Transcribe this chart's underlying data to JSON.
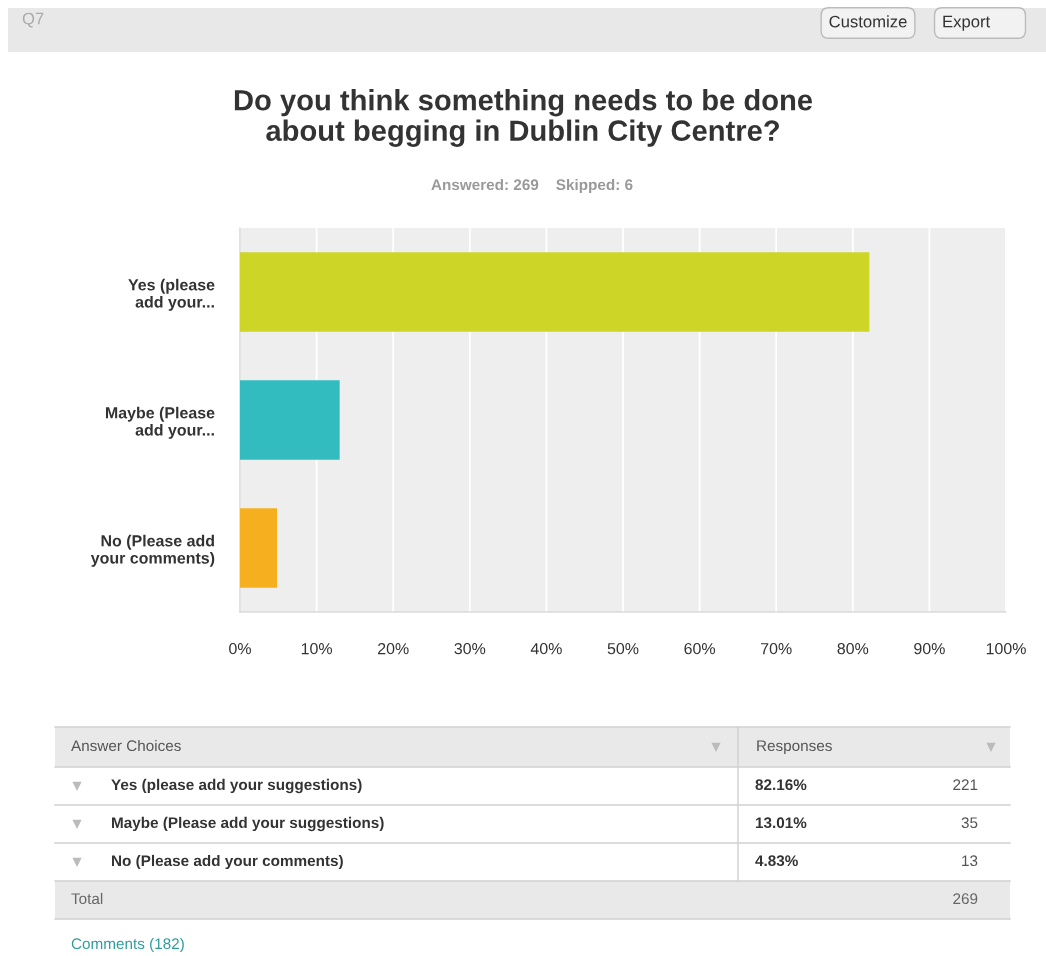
{
  "chart_data": {
    "type": "bar",
    "orientation": "horizontal",
    "title": "Do you think something needs to be done\nabout begging in Dublin City Centre?",
    "subtitle": "Answered: 269    Skipped: 6",
    "categories": [
      "Yes (please\nadd your...",
      "Maybe (Please\nadd your...",
      "No (Please add\nyour comments)"
    ],
    "values": [
      82.16,
      13.01,
      4.83
    ],
    "colors": [
      "#cdd527",
      "#32bcbf",
      "#f6b01f"
    ],
    "xlim": [
      0,
      100
    ],
    "xticks": [
      {
        "value": 0,
        "label": "0%"
      },
      {
        "value": 10,
        "label": "10%"
      },
      {
        "value": 20,
        "label": "20%"
      },
      {
        "value": 30,
        "label": "30%"
      },
      {
        "value": 40,
        "label": "40%"
      },
      {
        "value": 50,
        "label": "50%"
      },
      {
        "value": 60,
        "label": "60%"
      },
      {
        "value": 70,
        "label": "70%"
      },
      {
        "value": 80,
        "label": "80%"
      },
      {
        "value": 90,
        "label": "90%"
      },
      {
        "value": 100,
        "label": "100%"
      }
    ],
    "grid": "x",
    "legend": false,
    "annotations": [
      "Q7",
      "Customize",
      "Export",
      "Answer Choices",
      "Responses",
      "Yes (please add your suggestions)",
      "Maybe (Please add your suggestions)",
      "No (Please add your comments)",
      "221",
      "35",
      "13",
      "Total",
      "269",
      "Comments (182)",
      "82.16%",
      "13.01%",
      "4.83%"
    ]
  }
}
